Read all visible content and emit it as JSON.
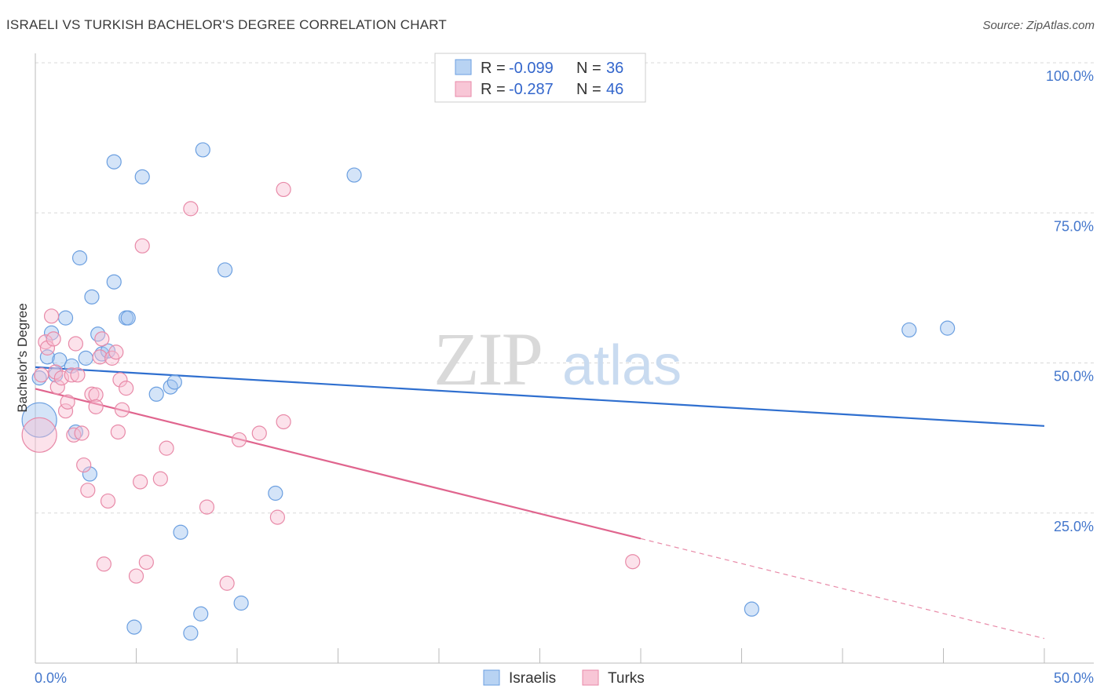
{
  "title": "ISRAELI VS TURKISH BACHELOR'S DEGREE CORRELATION CHART",
  "source": "Source: ZipAtlas.com",
  "watermark": {
    "zip": "ZIP",
    "atlas": "atlas"
  },
  "chart_data": {
    "type": "scatter",
    "ylabel": "Bachelor's Degree",
    "xlim": [
      0,
      50
    ],
    "ylim": [
      0,
      100
    ],
    "x_tick_labels": [
      "0.0%",
      "50.0%"
    ],
    "y_ticks": [
      25,
      50,
      75,
      100
    ],
    "y_tick_labels": [
      "25.0%",
      "50.0%",
      "75.0%",
      "100.0%"
    ],
    "legend": {
      "r_label": "R =",
      "n_label": "N =",
      "entries": [
        {
          "name": "Israelis",
          "R": "-0.099",
          "N": "36",
          "color": "#6b9fe0",
          "fill": "#b8d3f3"
        },
        {
          "name": "Turks",
          "R": "-0.287",
          "N": "46",
          "color": "#e88aa8",
          "fill": "#f8c6d6"
        }
      ]
    },
    "series": [
      {
        "name": "Israelis",
        "color": "#6b9fe0",
        "fill": "rgba(160,195,240,0.45)",
        "trend": {
          "x0": 0,
          "y0": 49.3,
          "x1": 50,
          "y1": 39.5,
          "solid_until": 50
        },
        "points": [
          [
            0.2,
            40.5,
            22
          ],
          [
            0.2,
            47.5,
            9
          ],
          [
            0.6,
            51,
            9
          ],
          [
            0.8,
            55,
            9
          ],
          [
            1.5,
            57.5,
            9
          ],
          [
            1.0,
            48,
            9
          ],
          [
            1.2,
            50.5,
            9
          ],
          [
            1.8,
            49.5,
            9
          ],
          [
            2.2,
            67.5,
            9
          ],
          [
            2.0,
            38.5,
            9
          ],
          [
            2.5,
            50.8,
            9
          ],
          [
            2.7,
            31.5,
            9
          ],
          [
            2.8,
            61,
            9
          ],
          [
            3.1,
            54.8,
            9
          ],
          [
            3.3,
            51.5,
            9
          ],
          [
            3.6,
            52,
            9
          ],
          [
            3.9,
            83.5,
            9
          ],
          [
            3.9,
            63.5,
            9
          ],
          [
            4.5,
            57.5,
            9
          ],
          [
            4.6,
            57.5,
            9
          ],
          [
            5.3,
            81,
            9
          ],
          [
            6.0,
            44.8,
            9
          ],
          [
            6.7,
            46,
            9
          ],
          [
            6.9,
            46.8,
            9
          ],
          [
            7.2,
            21.8,
            9
          ],
          [
            8.3,
            85.5,
            9
          ],
          [
            9.4,
            65.5,
            9
          ],
          [
            10.2,
            10,
            9
          ],
          [
            11.9,
            28.3,
            9
          ],
          [
            15.8,
            81.3,
            9
          ],
          [
            4.9,
            6,
            9
          ],
          [
            8.2,
            8.2,
            9
          ],
          [
            7.7,
            5,
            9
          ],
          [
            35.5,
            9,
            9
          ],
          [
            43.3,
            55.5,
            9
          ],
          [
            45.2,
            55.8,
            9
          ]
        ]
      },
      {
        "name": "Turks",
        "color": "#e88aa8",
        "fill": "rgba(248,190,210,0.45)",
        "trend": {
          "x0": 0,
          "y0": 45.7,
          "x1": 50,
          "y1": 4.1,
          "solid_until": 30
        },
        "points": [
          [
            0.2,
            38,
            22
          ],
          [
            0.3,
            48,
            9
          ],
          [
            0.5,
            53.5,
            9
          ],
          [
            0.6,
            52.5,
            9
          ],
          [
            0.8,
            57.8,
            9
          ],
          [
            0.9,
            54,
            9
          ],
          [
            1.0,
            48.5,
            9
          ],
          [
            1.1,
            46,
            9
          ],
          [
            1.3,
            47.5,
            9
          ],
          [
            1.5,
            42,
            9
          ],
          [
            1.6,
            43.5,
            9
          ],
          [
            1.8,
            48,
            9
          ],
          [
            1.9,
            38,
            9
          ],
          [
            2.0,
            53.2,
            9
          ],
          [
            2.1,
            48,
            9
          ],
          [
            2.3,
            38.3,
            9
          ],
          [
            2.4,
            33,
            9
          ],
          [
            2.6,
            28.8,
            9
          ],
          [
            2.8,
            44.8,
            9
          ],
          [
            3.0,
            44.7,
            9
          ],
          [
            3.0,
            42.7,
            9
          ],
          [
            3.2,
            51,
            9
          ],
          [
            3.3,
            54,
            9
          ],
          [
            3.4,
            16.5,
            9
          ],
          [
            3.6,
            27,
            9
          ],
          [
            3.8,
            50.8,
            9
          ],
          [
            4.0,
            51.8,
            9
          ],
          [
            4.1,
            38.5,
            9
          ],
          [
            4.2,
            47.2,
            9
          ],
          [
            4.3,
            42.2,
            9
          ],
          [
            4.5,
            45.8,
            9
          ],
          [
            5.0,
            14.5,
            9
          ],
          [
            5.2,
            30.2,
            9
          ],
          [
            5.3,
            69.5,
            9
          ],
          [
            5.5,
            16.8,
            9
          ],
          [
            6.2,
            30.7,
            9
          ],
          [
            6.5,
            35.8,
            9
          ],
          [
            7.7,
            75.7,
            9
          ],
          [
            8.5,
            26,
            9
          ],
          [
            9.5,
            13.3,
            9
          ],
          [
            10.1,
            37.2,
            9
          ],
          [
            11.1,
            38.3,
            9
          ],
          [
            12.0,
            24.3,
            9
          ],
          [
            12.3,
            40.2,
            9
          ],
          [
            12.3,
            78.9,
            9
          ],
          [
            29.6,
            16.9,
            9
          ]
        ]
      }
    ]
  }
}
